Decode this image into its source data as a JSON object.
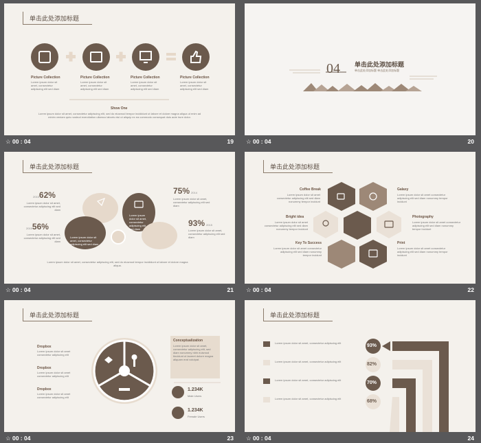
{
  "footer_time": "00 : 04",
  "slide_numbers": [
    "19",
    "20",
    "21",
    "22",
    "23",
    "24"
  ],
  "headings": {
    "title": "单击此处添加标题"
  },
  "s19": {
    "captions": [
      "Picture Collection",
      "Picture Collection",
      "Picture Collection",
      "Picture Collection"
    ],
    "subtext": "Lorem ipsum dolor sit amet, consectetur adipiscing elit sed diam",
    "show_one": "Show One",
    "body": "Lorem ipsum dolor sit amet, consectetur adipiscing elit, sed do eiusmod tempor incididunt ut labore et dolore magna aliqua ut enim ad minim veniam quis nostrud exercitation ullamco laboris nisi ut aliquip ex ea commodo consequat duis aute irure dolor."
  },
  "s20": {
    "number": "04",
    "title": "单击此处添加标题",
    "sub": "单击此处添加标题 单击此处添加标题"
  },
  "s21": {
    "stats": [
      {
        "value": "62%",
        "year": "2015"
      },
      {
        "value": "56%",
        "year": "2015"
      },
      {
        "value": "75%",
        "year": "2014"
      },
      {
        "value": "93%",
        "year": "2015"
      }
    ],
    "text": "Lorem ipsum dolor sit amet, consectetur adipiscing elit sed diam",
    "body": "Lorem ipsum dolor sit amet, consectetur adipiscing elit, sed do eiusmod tempor incididunt ut labore et dolore magna aliqua."
  },
  "s22": {
    "left": [
      "Coffee Break",
      "Bright idea",
      "Key To Success"
    ],
    "right": [
      "Galaxy",
      "Photography",
      "Print"
    ],
    "text": "Lorem ipsum dolor sit amet consectetur adipiscing elit sed diam nonummy tempor incidunt"
  },
  "s23": {
    "items": [
      "Dropbox",
      "Dropbox",
      "Dropbox"
    ],
    "box_title": "Conceptualization",
    "box_text": "Lorem ipsum dolor sit amet, consectetur adipiscing elit, sed diam nonummy nibh euismod tincidunt ut laoreet dolore magna aliquam erat volutpat.",
    "stats": [
      {
        "value": "1.234K",
        "label": "Male Users"
      },
      {
        "value": "1.234K",
        "label": "Female Users"
      }
    ],
    "text": "Lorem ipsum dolor sit amet consectetur adipiscing elit"
  },
  "s24": {
    "values": [
      "93%",
      "82%",
      "70%",
      "68%"
    ],
    "text": "Lorem ipsum dolor sit amet, consectetur adipiscing elit"
  }
}
